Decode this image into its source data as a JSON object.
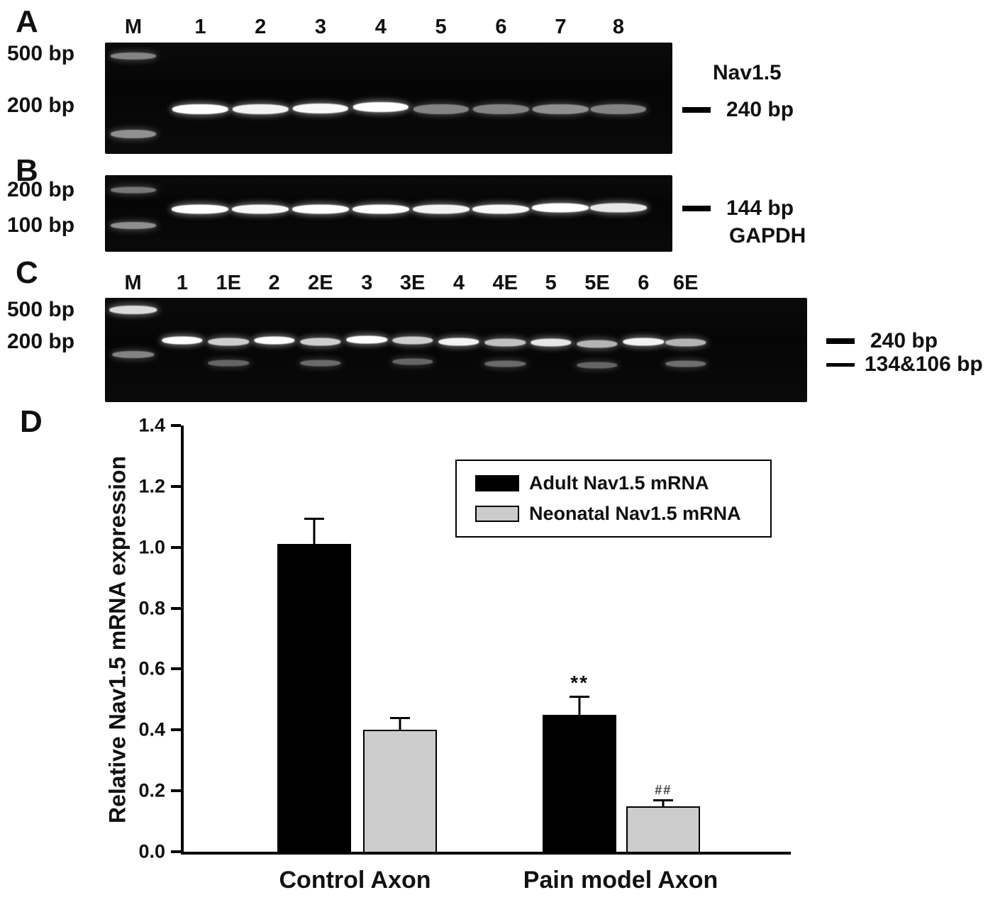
{
  "panels": {
    "A": {
      "label": "A",
      "gene_label": "Nav1.5",
      "band_callout": "240 bp",
      "left_markers": [
        {
          "text": "500 bp",
          "y": 0.1
        },
        {
          "text": "200 bp",
          "y": 0.57
        }
      ],
      "gel": {
        "band_w": 0.098,
        "band_h": 14,
        "lanes": [
          {
            "label": "M",
            "x": 0.05,
            "bands": [
              {
                "y": 0.12,
                "i": 0.5,
                "w": 0.08,
                "h": 10
              },
              {
                "y": 0.82,
                "i": 0.55,
                "w": 0.08,
                "h": 12
              }
            ]
          },
          {
            "label": "1",
            "x": 0.168,
            "bands": [
              {
                "y": 0.6,
                "i": 1
              }
            ]
          },
          {
            "label": "2",
            "x": 0.274,
            "bands": [
              {
                "y": 0.6,
                "i": 0.95
              }
            ]
          },
          {
            "label": "3",
            "x": 0.38,
            "bands": [
              {
                "y": 0.59,
                "i": 0.97
              }
            ]
          },
          {
            "label": "4",
            "x": 0.486,
            "bands": [
              {
                "y": 0.58,
                "i": 1
              }
            ]
          },
          {
            "label": "5",
            "x": 0.592,
            "bands": [
              {
                "y": 0.6,
                "i": 0.5
              }
            ]
          },
          {
            "label": "6",
            "x": 0.698,
            "bands": [
              {
                "y": 0.6,
                "i": 0.5
              }
            ]
          },
          {
            "label": "7",
            "x": 0.803,
            "bands": [
              {
                "y": 0.6,
                "i": 0.55
              }
            ]
          },
          {
            "label": "8",
            "x": 0.905,
            "bands": [
              {
                "y": 0.6,
                "i": 0.5
              }
            ]
          }
        ]
      }
    },
    "B": {
      "label": "B",
      "gene_label": "GAPDH",
      "band_callout": "144 bp",
      "left_markers": [
        {
          "text": "200 bp",
          "y": 0.19
        },
        {
          "text": "100 bp",
          "y": 0.655
        }
      ],
      "gel": {
        "band_w": 0.1,
        "band_h": 13,
        "lanes": [
          {
            "label": "",
            "x": 0.05,
            "bands": [
              {
                "y": 0.19,
                "i": 0.45,
                "w": 0.08,
                "h": 9
              },
              {
                "y": 0.655,
                "i": 0.55,
                "w": 0.08,
                "h": 10
              }
            ]
          },
          {
            "label": "",
            "x": 0.168,
            "bands": [
              {
                "y": 0.445,
                "i": 1
              }
            ]
          },
          {
            "label": "",
            "x": 0.274,
            "bands": [
              {
                "y": 0.445,
                "i": 0.97
              }
            ]
          },
          {
            "label": "",
            "x": 0.38,
            "bands": [
              {
                "y": 0.44,
                "i": 1
              }
            ]
          },
          {
            "label": "",
            "x": 0.486,
            "bands": [
              {
                "y": 0.44,
                "i": 1
              }
            ]
          },
          {
            "label": "",
            "x": 0.592,
            "bands": [
              {
                "y": 0.445,
                "i": 0.95
              }
            ]
          },
          {
            "label": "",
            "x": 0.698,
            "bands": [
              {
                "y": 0.445,
                "i": 0.97
              }
            ]
          },
          {
            "label": "",
            "x": 0.803,
            "bands": [
              {
                "y": 0.43,
                "i": 1
              }
            ]
          },
          {
            "label": "",
            "x": 0.905,
            "bands": [
              {
                "y": 0.43,
                "i": 0.9
              }
            ]
          }
        ]
      }
    },
    "C": {
      "label": "C",
      "band_callout_top": "240 bp",
      "band_callout_bottom": "134&106 bp",
      "left_markers": [
        {
          "text": "500 bp",
          "y": 0.115
        },
        {
          "text": "200 bp",
          "y": 0.425
        }
      ],
      "gel": {
        "band_w": 0.058,
        "band_h": 11,
        "lanes": [
          {
            "label": "M",
            "x": 0.04,
            "bands": [
              {
                "y": 0.115,
                "i": 0.85,
                "w": 0.068,
                "h": 12
              },
              {
                "y": 0.545,
                "i": 0.5,
                "w": 0.06,
                "h": 10
              }
            ]
          },
          {
            "label": "1",
            "x": 0.11,
            "bands": [
              {
                "y": 0.41,
                "i": 1
              }
            ]
          },
          {
            "label": "1E",
            "x": 0.176,
            "bands": [
              {
                "y": 0.42,
                "i": 0.8
              },
              {
                "y": 0.625,
                "i": 0.38,
                "h": 9
              }
            ]
          },
          {
            "label": "2",
            "x": 0.241,
            "bands": [
              {
                "y": 0.41,
                "i": 1
              }
            ]
          },
          {
            "label": "2E",
            "x": 0.307,
            "bands": [
              {
                "y": 0.42,
                "i": 0.8
              },
              {
                "y": 0.625,
                "i": 0.4,
                "h": 9
              }
            ]
          },
          {
            "label": "3",
            "x": 0.373,
            "bands": [
              {
                "y": 0.4,
                "i": 1
              }
            ]
          },
          {
            "label": "3E",
            "x": 0.438,
            "bands": [
              {
                "y": 0.41,
                "i": 0.8
              },
              {
                "y": 0.615,
                "i": 0.38,
                "h": 9
              }
            ]
          },
          {
            "label": "4",
            "x": 0.504,
            "bands": [
              {
                "y": 0.42,
                "i": 0.95
              }
            ]
          },
          {
            "label": "4E",
            "x": 0.57,
            "bands": [
              {
                "y": 0.43,
                "i": 0.75
              },
              {
                "y": 0.635,
                "i": 0.4,
                "h": 9
              }
            ]
          },
          {
            "label": "5",
            "x": 0.635,
            "bands": [
              {
                "y": 0.43,
                "i": 0.9
              }
            ]
          },
          {
            "label": "5E",
            "x": 0.701,
            "bands": [
              {
                "y": 0.44,
                "i": 0.7
              },
              {
                "y": 0.645,
                "i": 0.38,
                "h": 9
              }
            ]
          },
          {
            "label": "6",
            "x": 0.767,
            "bands": [
              {
                "y": 0.42,
                "i": 0.95
              }
            ]
          },
          {
            "label": "6E",
            "x": 0.827,
            "bands": [
              {
                "y": 0.43,
                "i": 0.7
              },
              {
                "y": 0.63,
                "i": 0.42,
                "h": 9
              }
            ]
          }
        ]
      }
    },
    "D": {
      "label": "D"
    }
  },
  "chart_data": {
    "type": "bar",
    "title": "",
    "xlabel": "",
    "ylabel": "Relative Nav1.5 mRNA expression",
    "categories": [
      "Control Axon",
      "Pain model Axon"
    ],
    "series": [
      {
        "name": "Adult Nav1.5 mRNA",
        "color": "#000000",
        "values": [
          1.01,
          0.45
        ],
        "errors": [
          0.08,
          0.055
        ],
        "annotations": [
          "",
          "**"
        ]
      },
      {
        "name": "Neonatal Nav1.5 mRNA",
        "color": "#cccccc",
        "values": [
          0.4,
          0.15
        ],
        "errors": [
          0.035,
          0.015
        ],
        "annotations": [
          "",
          "##"
        ]
      }
    ],
    "ylim": [
      0.0,
      1.4
    ],
    "yticks": [
      "0.0",
      "0.2",
      "0.4",
      "0.6",
      "0.8",
      "1.0",
      "1.2",
      "1.4"
    ],
    "grid": false,
    "legend_position": "upper right"
  }
}
